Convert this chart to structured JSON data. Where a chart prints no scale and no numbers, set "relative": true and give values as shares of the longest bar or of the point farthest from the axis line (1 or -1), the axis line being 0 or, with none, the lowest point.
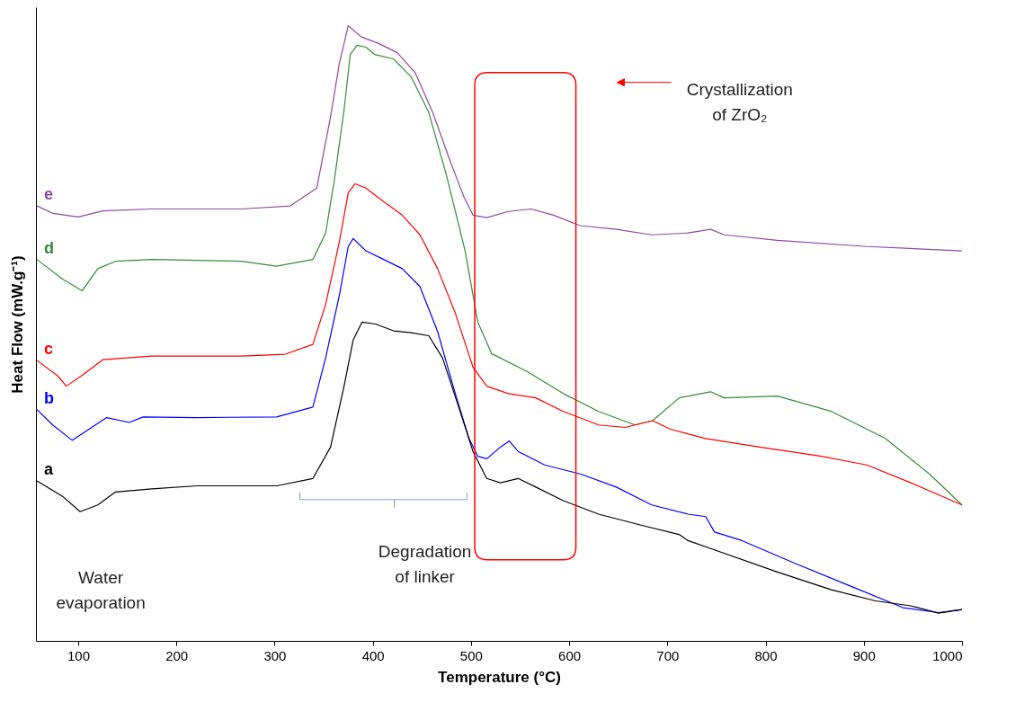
{
  "chart_data": {
    "type": "line",
    "relative": true,
    "xlabel": "Temperature (°C)",
    "ylabel": "Heat Flow (mW.g⁻¹)",
    "xlim": [
      57,
      1000
    ],
    "xticks": [
      100,
      200,
      300,
      400,
      500,
      600,
      700,
      800,
      900,
      1000
    ],
    "grid": false,
    "legend": false,
    "marker": "none",
    "line_style": "solid",
    "series": [
      {
        "name": "e",
        "color": "#8e4a9e",
        "x": [
          58,
          74,
          100,
          125,
          175,
          266,
          316,
          343,
          357,
          366,
          375,
          388,
          406,
          425,
          443,
          461,
          479,
          493,
          502,
          516,
          538,
          561,
          584,
          611,
          648,
          684,
          721,
          744,
          758,
          812,
          903,
          1000
        ],
        "values": [
          0.707,
          0.695,
          0.689,
          0.699,
          0.702,
          0.702,
          0.707,
          0.736,
          0.852,
          0.939,
          1,
          0.982,
          0.971,
          0.956,
          0.924,
          0.859,
          0.779,
          0.721,
          0.692,
          0.688,
          0.698,
          0.702,
          0.692,
          0.675,
          0.669,
          0.66,
          0.663,
          0.669,
          0.66,
          0.651,
          0.641,
          0.634
        ]
      },
      {
        "name": "d",
        "color": "#3a8a3a",
        "x": [
          58,
          84,
          104,
          120,
          138,
          175,
          266,
          302,
          339,
          352,
          361,
          371,
          377,
          384,
          393,
          402,
          421,
          439,
          457,
          475,
          494,
          507,
          521,
          557,
          594,
          630,
          667,
          685,
          712,
          744,
          758,
          812,
          867,
          922,
          967,
          1000
        ],
        "values": [
          0.62,
          0.588,
          0.569,
          0.605,
          0.617,
          0.62,
          0.617,
          0.609,
          0.62,
          0.663,
          0.75,
          0.866,
          0.953,
          0.968,
          0.965,
          0.953,
          0.946,
          0.917,
          0.859,
          0.757,
          0.634,
          0.518,
          0.467,
          0.438,
          0.402,
          0.373,
          0.351,
          0.358,
          0.395,
          0.405,
          0.395,
          0.398,
          0.373,
          0.329,
          0.271,
          0.221
        ]
      },
      {
        "name": "c",
        "color": "#ff0000",
        "x": [
          58,
          79,
          88,
          106,
          125,
          175,
          266,
          311,
          339,
          352,
          366,
          375,
          382,
          393,
          411,
          430,
          448,
          466,
          484,
          502,
          516,
          538,
          566,
          594,
          630,
          657,
          685,
          703,
          739,
          794,
          857,
          903,
          948,
          1000
        ],
        "values": [
          0.456,
          0.431,
          0.414,
          0.434,
          0.457,
          0.463,
          0.463,
          0.466,
          0.482,
          0.547,
          0.649,
          0.728,
          0.743,
          0.736,
          0.714,
          0.692,
          0.66,
          0.605,
          0.533,
          0.445,
          0.414,
          0.402,
          0.395,
          0.373,
          0.351,
          0.347,
          0.358,
          0.344,
          0.329,
          0.315,
          0.3,
          0.286,
          0.257,
          0.221
        ]
      },
      {
        "name": "b",
        "color": "#0000ff",
        "x": [
          58,
          74,
          94,
          111,
          129,
          152,
          166,
          220,
          302,
          339,
          352,
          366,
          375,
          380,
          393,
          411,
          430,
          448,
          466,
          484,
          498,
          507,
          516,
          530,
          539,
          548,
          575,
          612,
          648,
          684,
          721,
          739,
          748,
          776,
          830,
          885,
          940,
          976,
          1000
        ],
        "values": [
          0.376,
          0.351,
          0.326,
          0.344,
          0.363,
          0.355,
          0.364,
          0.363,
          0.364,
          0.38,
          0.46,
          0.562,
          0.641,
          0.654,
          0.634,
          0.62,
          0.605,
          0.576,
          0.503,
          0.402,
          0.329,
          0.3,
          0.296,
          0.315,
          0.325,
          0.308,
          0.286,
          0.271,
          0.25,
          0.221,
          0.206,
          0.202,
          0.177,
          0.163,
          0.126,
          0.09,
          0.054,
          0.046,
          0.051
        ]
      },
      {
        "name": "a",
        "color": "#000000",
        "x": [
          58,
          84,
          102,
          120,
          138,
          175,
          221,
          302,
          339,
          357,
          371,
          380,
          389,
          403,
          421,
          439,
          457,
          471,
          489,
          502,
          516,
          530,
          548,
          566,
          594,
          630,
          676,
          712,
          721,
          748,
          812,
          867,
          912,
          948,
          976,
          1000
        ],
        "values": [
          0.26,
          0.235,
          0.21,
          0.221,
          0.242,
          0.247,
          0.252,
          0.252,
          0.264,
          0.315,
          0.416,
          0.489,
          0.518,
          0.515,
          0.504,
          0.501,
          0.496,
          0.46,
          0.373,
          0.308,
          0.264,
          0.257,
          0.264,
          0.25,
          0.228,
          0.206,
          0.187,
          0.173,
          0.163,
          0.148,
          0.112,
          0.083,
          0.065,
          0.057,
          0.045,
          0.051
        ]
      }
    ],
    "annotations": [
      "Water\nevaporation",
      "Degradation\nof linker",
      "Crystallization\nof ZrO₂"
    ]
  }
}
